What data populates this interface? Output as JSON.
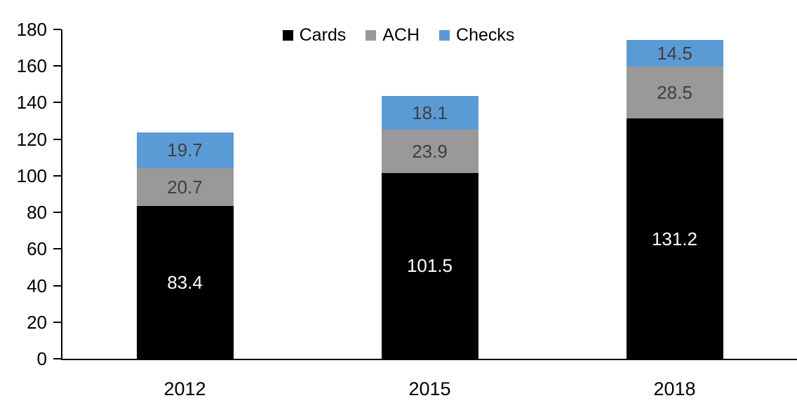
{
  "chart_data": {
    "type": "bar",
    "stacked": true,
    "categories": [
      "2012",
      "2015",
      "2018"
    ],
    "series": [
      {
        "name": "Cards",
        "color": "#000000",
        "label_color": "#ffffff",
        "values": [
          83.4,
          101.5,
          131.2
        ]
      },
      {
        "name": "ACH",
        "color": "#999999",
        "label_color": "#3f3f3f",
        "values": [
          20.7,
          23.9,
          28.5
        ]
      },
      {
        "name": "Checks",
        "color": "#5b9bd5",
        "label_color": "#3f3f3f",
        "values": [
          19.7,
          18.1,
          14.5
        ]
      }
    ],
    "yticks": [
      0,
      20,
      40,
      60,
      80,
      100,
      120,
      140,
      160,
      180
    ],
    "ylim": [
      0,
      180
    ],
    "grid": false,
    "legend_position": "top-center",
    "axis_color": "#000000",
    "background_color": "#ffffff",
    "data_labels_shown": true
  }
}
